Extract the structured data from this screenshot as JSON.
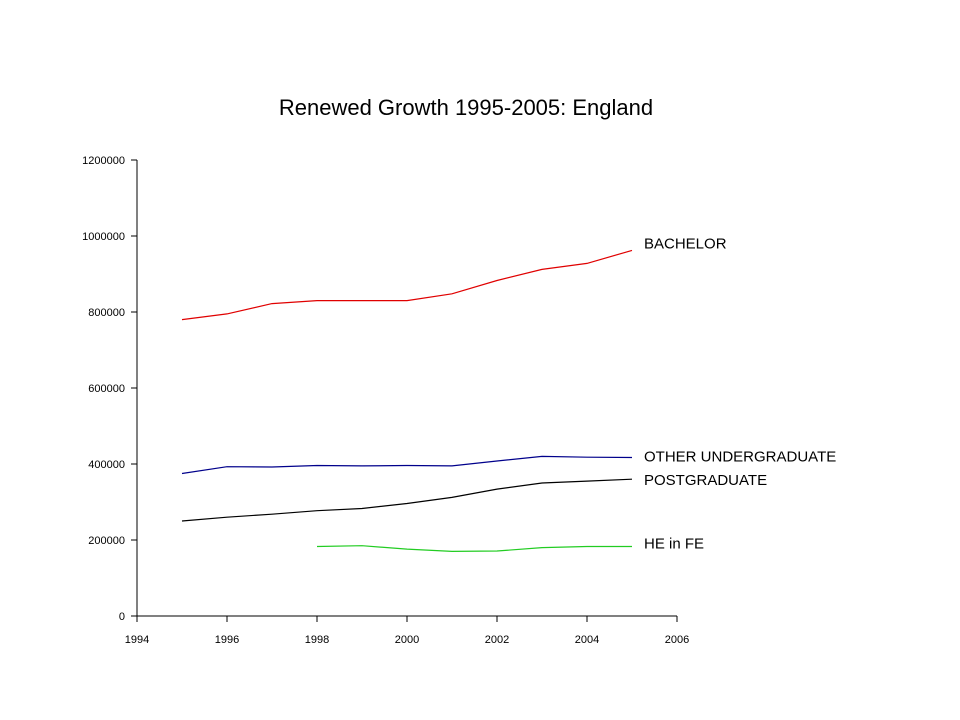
{
  "chart_data": {
    "type": "line",
    "title": "Renewed Growth 1995-2005: England",
    "xlabel": "",
    "ylabel": "",
    "xlim": [
      1994,
      2006
    ],
    "ylim": [
      0,
      1200000
    ],
    "x_ticks": [
      1994,
      1996,
      1998,
      2000,
      2002,
      2004,
      2006
    ],
    "y_ticks": [
      0,
      200000,
      400000,
      600000,
      800000,
      1000000,
      1200000
    ],
    "grid": false,
    "legend": "inline labels at line ends",
    "series": [
      {
        "name": "BACHELOR",
        "color": "#e00000",
        "x": [
          1995,
          1996,
          1997,
          1998,
          1999,
          2000,
          2001,
          2002,
          2003,
          2004,
          2005
        ],
        "y": [
          780000,
          795000,
          822000,
          830000,
          830000,
          830000,
          848000,
          883000,
          912000,
          928000,
          962000
        ]
      },
      {
        "name": "OTHER UNDERGRADUATE",
        "color": "#00008b",
        "x": [
          1995,
          1996,
          1997,
          1998,
          1999,
          2000,
          2001,
          2002,
          2003,
          2004,
          2005
        ],
        "y": [
          375000,
          393000,
          392000,
          396000,
          395000,
          396000,
          395000,
          408000,
          420000,
          418000,
          417000
        ]
      },
      {
        "name": "POSTGRADUATE",
        "color": "#000000",
        "x": [
          1995,
          1996,
          1997,
          1998,
          1999,
          2000,
          2001,
          2002,
          2003,
          2004,
          2005
        ],
        "y": [
          250000,
          260000,
          268000,
          277000,
          283000,
          296000,
          312000,
          334000,
          350000,
          355000,
          360000
        ]
      },
      {
        "name": "HE in FE",
        "color": "#22cc22",
        "x": [
          1998,
          1999,
          2000,
          2001,
          2002,
          2003,
          2004,
          2005
        ],
        "y": [
          183000,
          185000,
          176000,
          170000,
          171000,
          180000,
          183000,
          183000
        ]
      }
    ]
  }
}
